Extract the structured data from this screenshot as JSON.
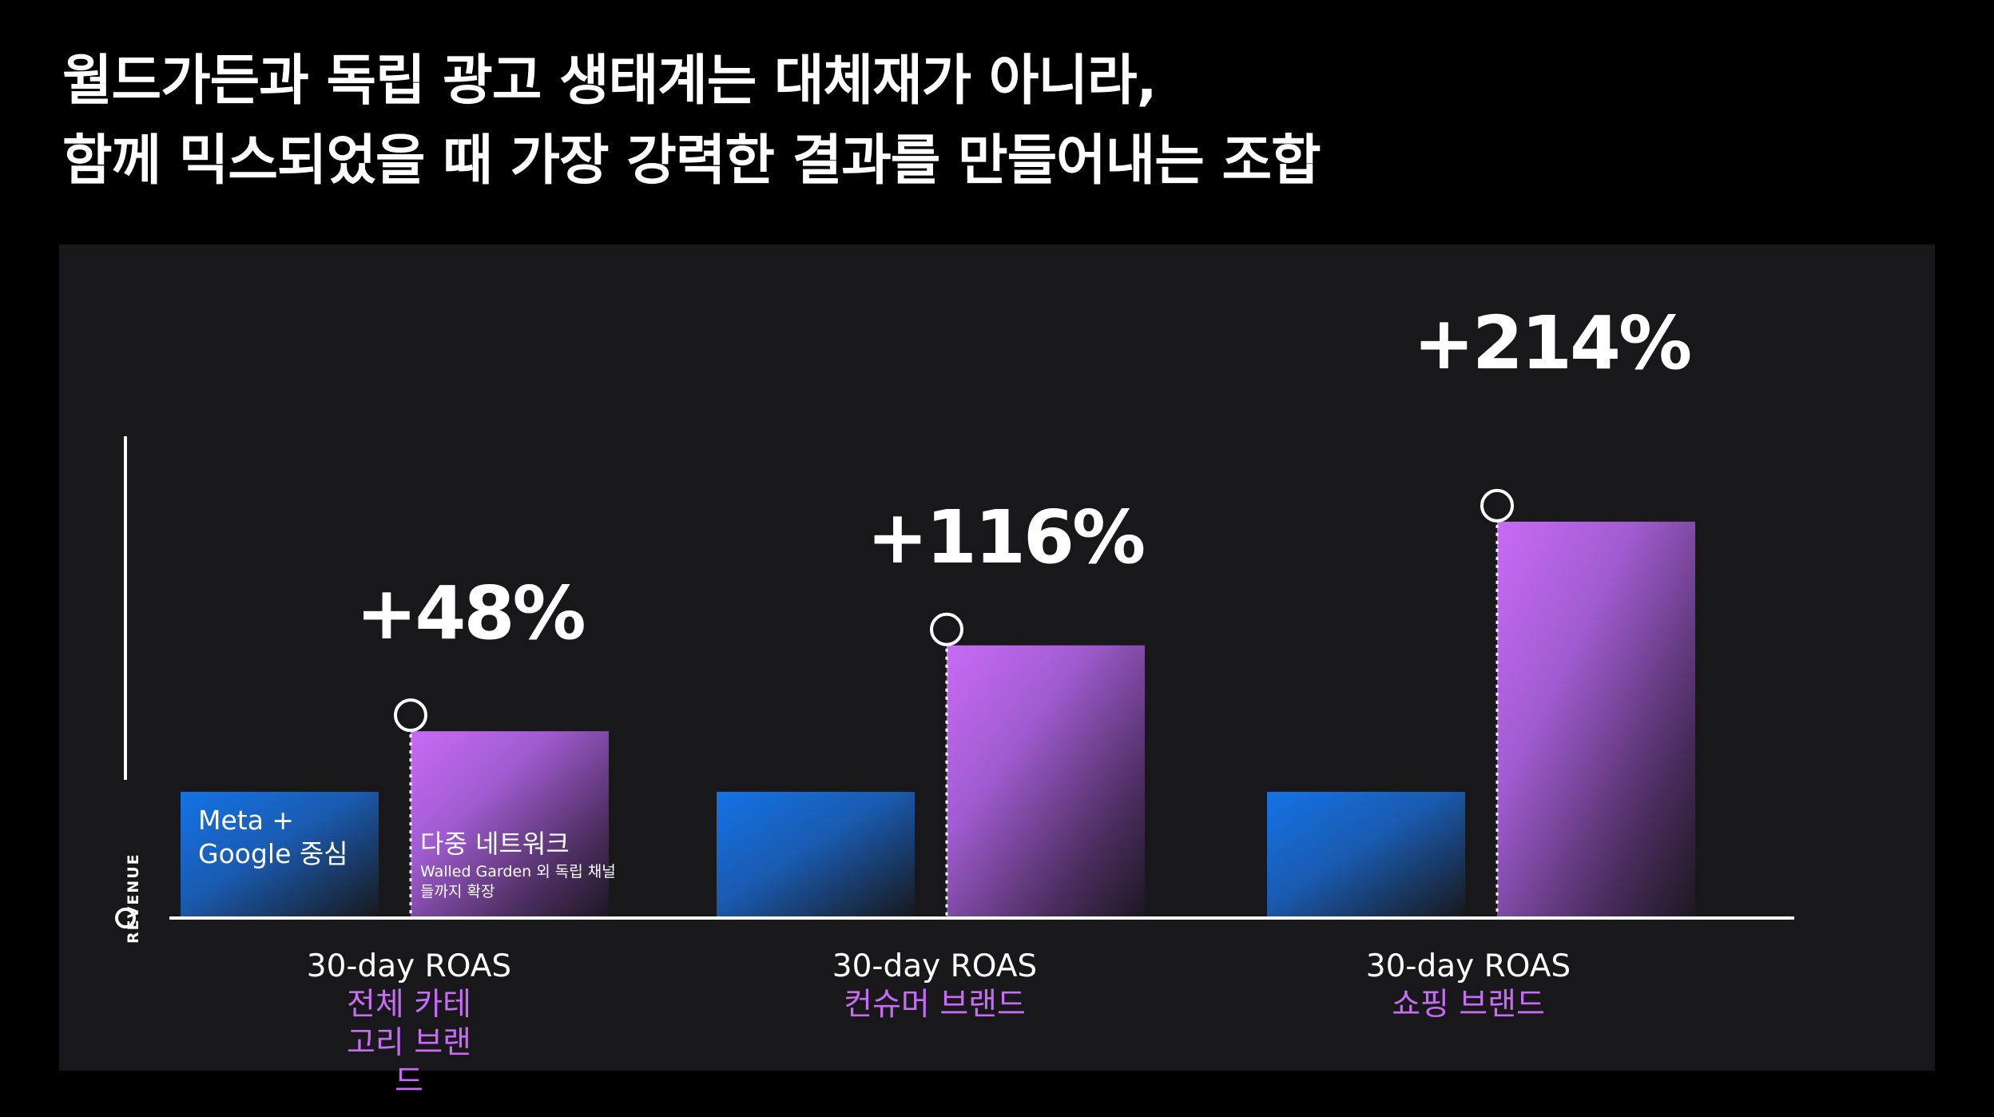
{
  "headline": {
    "line1": "월드가든과 독립 광고 생태계는 대체재가 아니라,",
    "line2": "함께 믹스되었을 때 가장 강력한 결과를 만들어내는 조합"
  },
  "colors": {
    "background": "#000000",
    "panel": "#18181b",
    "base_bar": "#1473e6",
    "uplift_bar": "#c86bf5",
    "segment_text": "#c86bf5"
  },
  "bar_labels": {
    "base": "Meta + Google 중심",
    "multi_title": "다중 네트워크",
    "multi_sub": "Walled Garden 외 독립 채널들까지 확장"
  },
  "chart_data": {
    "type": "bar",
    "ylabel": "REVENUE",
    "y_scale": "relative",
    "ylim": [
      0,
      3.5
    ],
    "categories": [
      {
        "metric": "30-day ROAS",
        "segment": "전체 카테고리 브랜드"
      },
      {
        "metric": "30-day ROAS",
        "segment": "컨슈머 브랜드"
      },
      {
        "metric": "30-day ROAS",
        "segment": "쇼핑 브랜드"
      }
    ],
    "series": [
      {
        "name": "Meta + Google 중심",
        "values": [
          1.0,
          1.0,
          1.0
        ]
      },
      {
        "name": "다중 네트워크",
        "values": [
          1.48,
          2.16,
          3.14
        ]
      }
    ],
    "uplift_labels": [
      "+48%",
      "+116%",
      "+214%"
    ],
    "grid": false,
    "legend": "inside bars"
  }
}
